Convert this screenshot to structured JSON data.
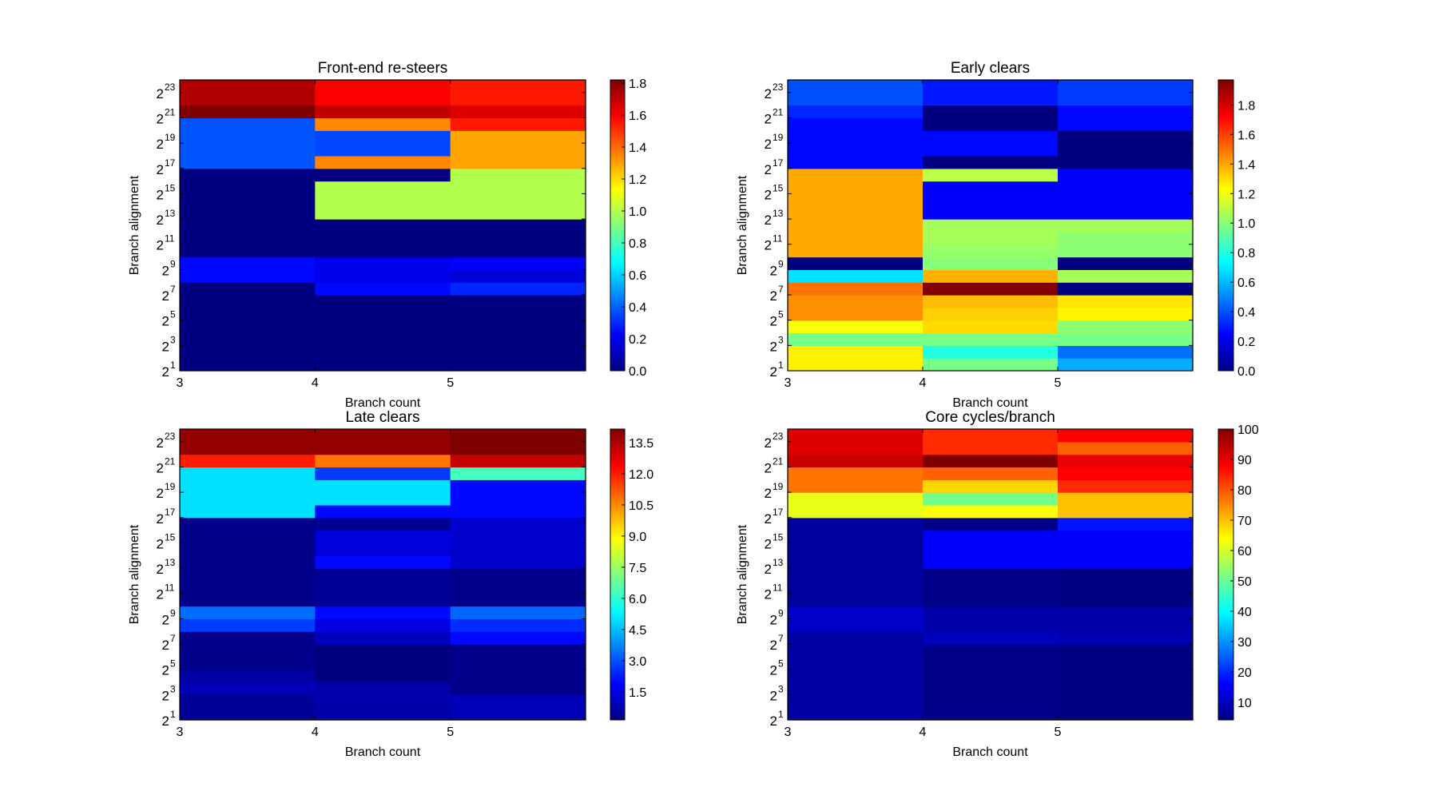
{
  "figure": {
    "xlabel": "Branch count",
    "ylabel": "Branch alignment"
  },
  "chart_data": [
    {
      "type": "heatmap",
      "title": "Front-end re-steers",
      "xlabel": "Branch count",
      "ylabel": "Branch alignment",
      "x_ticks": [
        "3",
        "4",
        "5"
      ],
      "x_range": [
        3,
        6
      ],
      "y_scale": "log2",
      "y_range_log2": [
        1,
        24
      ],
      "y_ticks": [
        {
          "base": "2",
          "exp": "1"
        },
        {
          "base": "2",
          "exp": "3"
        },
        {
          "base": "2",
          "exp": "5"
        },
        {
          "base": "2",
          "exp": "7"
        },
        {
          "base": "2",
          "exp": "9"
        },
        {
          "base": "2",
          "exp": "11"
        },
        {
          "base": "2",
          "exp": "13"
        },
        {
          "base": "2",
          "exp": "15"
        },
        {
          "base": "2",
          "exp": "17"
        },
        {
          "base": "2",
          "exp": "19"
        },
        {
          "base": "2",
          "exp": "21"
        },
        {
          "base": "2",
          "exp": "23"
        }
      ],
      "colormap": "jet",
      "vmin": 0.0,
      "vmax": 1.82,
      "colorbar_ticks": [
        "0.0",
        "0.2",
        "0.4",
        "0.6",
        "0.8",
        "1.0",
        "1.2",
        "1.4",
        "1.6",
        "1.8"
      ],
      "row_log2_start": [
        1,
        2,
        3,
        4,
        5,
        6,
        7,
        8,
        9,
        10,
        11,
        12,
        13,
        14,
        15,
        16,
        17,
        18,
        19,
        20,
        21,
        22,
        23
      ],
      "columns": [
        {
          "x": 3,
          "values": [
            0,
            0,
            0,
            0,
            0,
            0,
            0,
            0.24,
            0.24,
            0,
            0,
            0,
            0,
            0,
            0,
            0,
            0.38,
            0.38,
            0.38,
            0.38,
            1.82,
            1.73,
            1.73
          ]
        },
        {
          "x": 4,
          "values": [
            0,
            0,
            0,
            0,
            0,
            0,
            0.24,
            0.19,
            0.19,
            0,
            0,
            0,
            1.0,
            1.0,
            1.0,
            0,
            1.35,
            0.35,
            0.35,
            1.35,
            1.7,
            1.6,
            1.6
          ]
        },
        {
          "x": 5,
          "values": [
            0,
            0,
            0,
            0,
            0,
            0,
            0.29,
            0.16,
            0.22,
            0,
            0,
            0,
            1.0,
            1.0,
            1.0,
            1.0,
            1.3,
            1.3,
            1.3,
            1.55,
            1.65,
            1.55,
            1.55
          ]
        }
      ]
    },
    {
      "type": "heatmap",
      "title": "Early clears",
      "xlabel": "Branch count",
      "ylabel": "Branch alignment",
      "x_ticks": [
        "3",
        "4",
        "5"
      ],
      "x_range": [
        3,
        6
      ],
      "y_scale": "log2",
      "y_range_log2": [
        1,
        24
      ],
      "y_ticks": [
        {
          "base": "2",
          "exp": "1"
        },
        {
          "base": "2",
          "exp": "3"
        },
        {
          "base": "2",
          "exp": "5"
        },
        {
          "base": "2",
          "exp": "7"
        },
        {
          "base": "2",
          "exp": "9"
        },
        {
          "base": "2",
          "exp": "11"
        },
        {
          "base": "2",
          "exp": "13"
        },
        {
          "base": "2",
          "exp": "15"
        },
        {
          "base": "2",
          "exp": "17"
        },
        {
          "base": "2",
          "exp": "19"
        },
        {
          "base": "2",
          "exp": "21"
        },
        {
          "base": "2",
          "exp": "23"
        }
      ],
      "colormap": "jet",
      "vmin": 0.0,
      "vmax": 1.97,
      "colorbar_ticks": [
        "0.0",
        "0.2",
        "0.4",
        "0.6",
        "0.8",
        "1.0",
        "1.2",
        "1.4",
        "1.6",
        "1.8"
      ],
      "row_log2_start": [
        1,
        2,
        3,
        4,
        5,
        6,
        7,
        8,
        9,
        10,
        11,
        12,
        13,
        14,
        15,
        16,
        17,
        18,
        19,
        20,
        21,
        22,
        23
      ],
      "columns": [
        {
          "x": 3,
          "values": [
            1.26,
            1.26,
            0.97,
            1.22,
            1.45,
            1.45,
            1.5,
            0.68,
            0,
            1.4,
            1.4,
            1.4,
            1.4,
            1.4,
            1.4,
            1.4,
            0.26,
            0.26,
            0.26,
            0.26,
            0.32,
            0.4,
            0.4
          ]
        },
        {
          "x": 4,
          "values": [
            0.97,
            0.8,
            0.97,
            1.3,
            1.32,
            1.36,
            1.97,
            1.38,
            1.0,
            1.03,
            1.06,
            1.06,
            0.24,
            0.24,
            0.24,
            1.1,
            0,
            0.26,
            0.26,
            0,
            0,
            0.29,
            0.29
          ]
        },
        {
          "x": 5,
          "values": [
            0.58,
            0.46,
            0.97,
            1.01,
            1.25,
            1.28,
            0,
            1.06,
            0,
            1.01,
            1.01,
            1.06,
            0.24,
            0.24,
            0.24,
            0.24,
            0,
            0,
            0,
            0.26,
            0.26,
            0.36,
            0.36
          ]
        }
      ]
    },
    {
      "type": "heatmap",
      "title": "Late clears",
      "xlabel": "Branch count",
      "ylabel": "Branch alignment",
      "x_ticks": [
        "3",
        "4",
        "5"
      ],
      "x_range": [
        3,
        6
      ],
      "y_scale": "log2",
      "y_range_log2": [
        1,
        24
      ],
      "y_ticks": [
        {
          "base": "2",
          "exp": "1"
        },
        {
          "base": "2",
          "exp": "3"
        },
        {
          "base": "2",
          "exp": "5"
        },
        {
          "base": "2",
          "exp": "7"
        },
        {
          "base": "2",
          "exp": "9"
        },
        {
          "base": "2",
          "exp": "11"
        },
        {
          "base": "2",
          "exp": "13"
        },
        {
          "base": "2",
          "exp": "15"
        },
        {
          "base": "2",
          "exp": "17"
        },
        {
          "base": "2",
          "exp": "19"
        },
        {
          "base": "2",
          "exp": "21"
        },
        {
          "base": "2",
          "exp": "23"
        }
      ],
      "colormap": "jet",
      "vmin": 0.15,
      "vmax": 14.15,
      "colorbar_ticks": [
        "1.5",
        "3.0",
        "4.5",
        "6.0",
        "7.5",
        "9.0",
        "10.5",
        "12.0",
        "13.5"
      ],
      "row_log2_start": [
        1,
        2,
        3,
        4,
        5,
        6,
        7,
        8,
        9,
        10,
        11,
        12,
        13,
        14,
        15,
        16,
        17,
        18,
        19,
        20,
        21,
        22,
        23
      ],
      "columns": [
        {
          "x": 3,
          "values": [
            0.5,
            0.5,
            0.9,
            0.6,
            0.3,
            0.3,
            0.3,
            2.7,
            3.4,
            0.3,
            0.3,
            0.3,
            0.3,
            0.3,
            0.3,
            0.3,
            5.0,
            5.0,
            5.0,
            5.0,
            12.0,
            13.9,
            13.9
          ]
        },
        {
          "x": 4,
          "values": [
            0.7,
            0.8,
            0.7,
            0.15,
            0.15,
            0.15,
            1.0,
            1.5,
            2.0,
            0.5,
            0.5,
            0.5,
            2.0,
            1.4,
            1.4,
            0.4,
            2.0,
            5.0,
            5.0,
            2.7,
            10.8,
            13.9,
            13.9
          ]
        },
        {
          "x": 5,
          "values": [
            0.9,
            0.9,
            0.3,
            0.3,
            0.3,
            0.3,
            2.0,
            2.5,
            3.3,
            0.3,
            0.3,
            0.3,
            1.2,
            1.2,
            1.2,
            1.2,
            2.0,
            2.0,
            2.0,
            6.3,
            13.2,
            14.15,
            14.15
          ]
        }
      ]
    },
    {
      "type": "heatmap",
      "title": "Core cycles/branch",
      "xlabel": "Branch count",
      "ylabel": "Branch alignment",
      "x_ticks": [
        "3",
        "4",
        "5"
      ],
      "x_range": [
        3,
        6
      ],
      "y_scale": "log2",
      "y_range_log2": [
        1,
        24
      ],
      "y_ticks": [
        {
          "base": "2",
          "exp": "1"
        },
        {
          "base": "2",
          "exp": "3"
        },
        {
          "base": "2",
          "exp": "5"
        },
        {
          "base": "2",
          "exp": "7"
        },
        {
          "base": "2",
          "exp": "9"
        },
        {
          "base": "2",
          "exp": "11"
        },
        {
          "base": "2",
          "exp": "13"
        },
        {
          "base": "2",
          "exp": "15"
        },
        {
          "base": "2",
          "exp": "17"
        },
        {
          "base": "2",
          "exp": "19"
        },
        {
          "base": "2",
          "exp": "21"
        },
        {
          "base": "2",
          "exp": "23"
        }
      ],
      "colormap": "jet",
      "vmin": 4.2,
      "vmax": 100,
      "colorbar_ticks": [
        "10",
        "20",
        "30",
        "40",
        "50",
        "60",
        "70",
        "80",
        "90",
        "100"
      ],
      "row_log2_start": [
        1,
        2,
        3,
        4,
        5,
        6,
        7,
        8,
        9,
        10,
        11,
        12,
        13,
        14,
        15,
        16,
        17,
        18,
        19,
        20,
        21,
        22,
        23
      ],
      "columns": [
        {
          "x": 3,
          "values": [
            7.5,
            7.5,
            7.5,
            7.5,
            7.5,
            7.5,
            7.5,
            11,
            11,
            7,
            7,
            7,
            7,
            7,
            7,
            7,
            62,
            62,
            77,
            77,
            93,
            91,
            91
          ]
        },
        {
          "x": 4,
          "values": [
            5,
            5,
            5,
            5,
            5,
            5,
            10,
            8,
            8,
            5,
            5,
            5,
            16,
            16,
            16,
            5,
            64,
            51,
            68,
            79,
            100,
            84,
            84
          ]
        },
        {
          "x": 5,
          "values": [
            4.5,
            4.5,
            4.5,
            4.5,
            4.5,
            4.5,
            9,
            8,
            8,
            4.5,
            4.5,
            4.5,
            16,
            16,
            16,
            18,
            70,
            70,
            84,
            88,
            90,
            79,
            88
          ]
        }
      ]
    }
  ]
}
